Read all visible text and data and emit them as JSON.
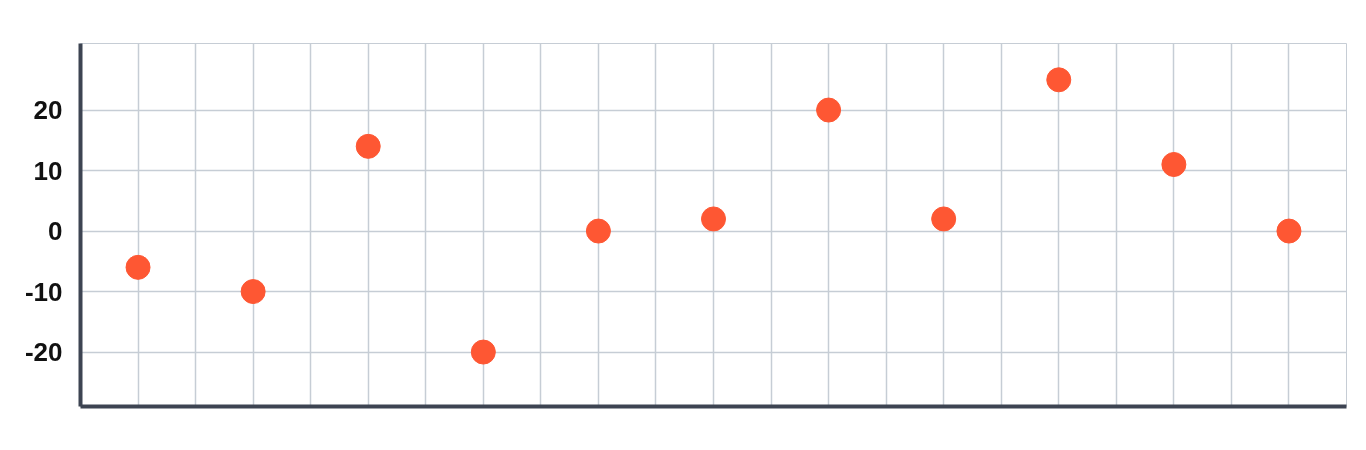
{
  "chart_data": {
    "type": "scatter",
    "categories": [
      null,
      null,
      null,
      null,
      null,
      null,
      null,
      null,
      null,
      null,
      null
    ],
    "values": [
      -6,
      -10,
      14,
      -20,
      0,
      2,
      20,
      2,
      25,
      11,
      0
    ],
    "color": "#fe5733",
    "marker": "circle",
    "ylim": [
      -29,
      31
    ],
    "yticks": [
      -20,
      -10,
      0,
      10,
      20
    ],
    "grid": true,
    "tick_labels": "y"
  }
}
